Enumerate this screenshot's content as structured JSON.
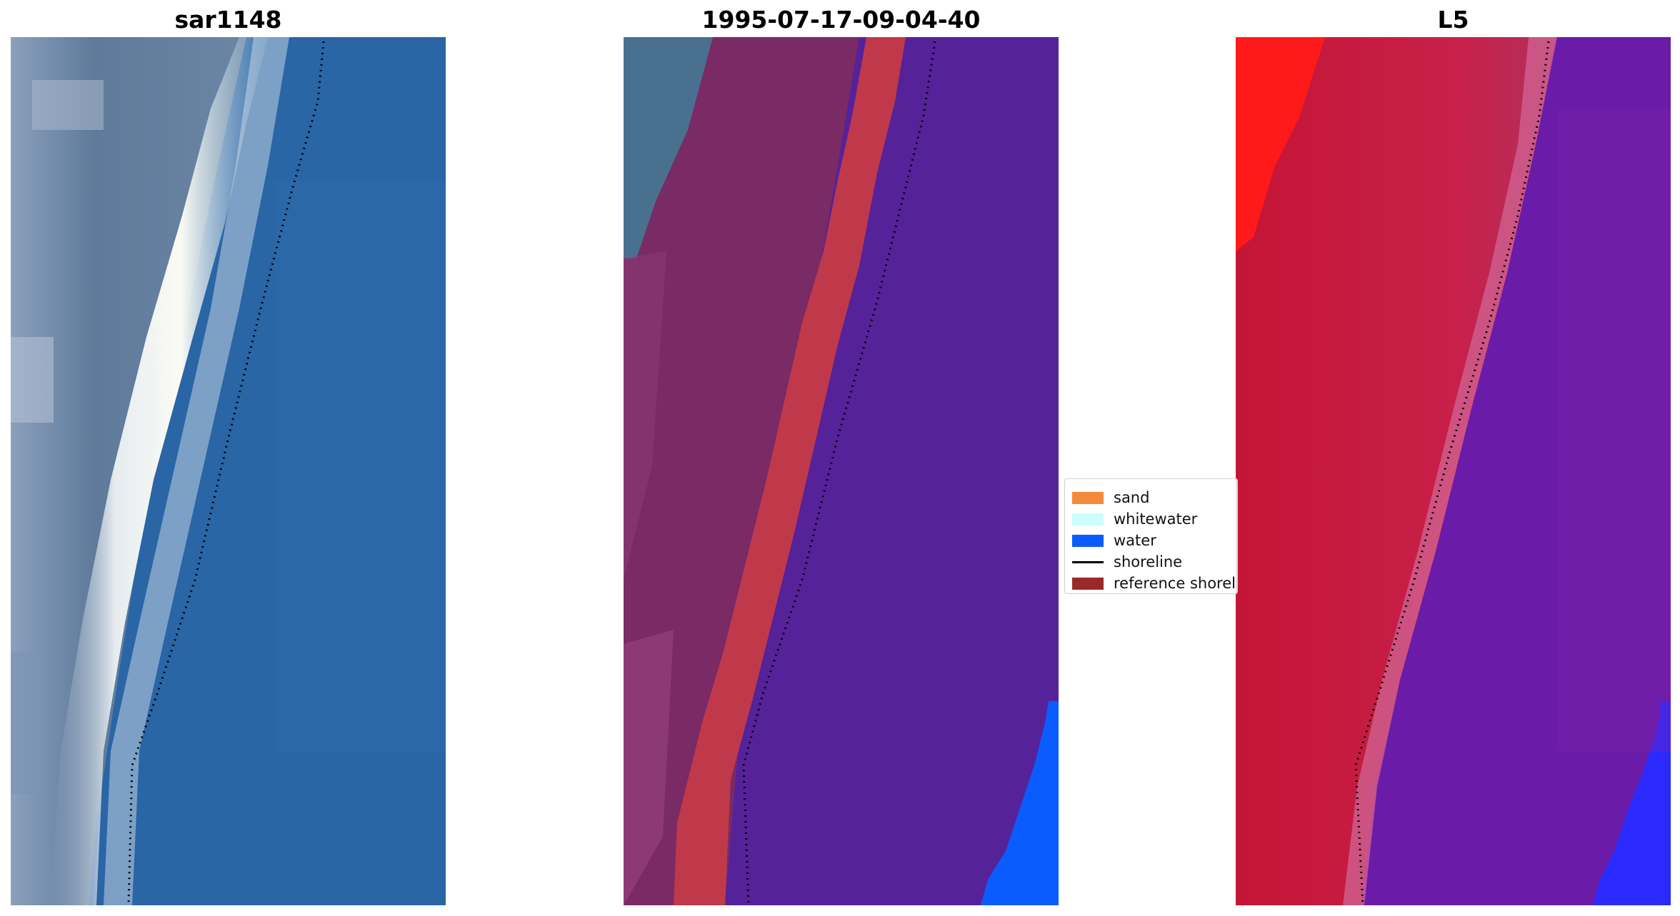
{
  "panels": [
    {
      "title": "sar1148",
      "kind": "rgb"
    },
    {
      "title": "1995-07-17-09-04-40",
      "kind": "classified"
    },
    {
      "title": "L5",
      "kind": "index"
    }
  ],
  "legend": {
    "items": [
      {
        "label": "sand",
        "color": "#f58a3d",
        "type": "patch"
      },
      {
        "label": "whitewater",
        "color": "#ccfffc",
        "type": "patch"
      },
      {
        "label": "water",
        "color": "#0a5cff",
        "type": "patch"
      },
      {
        "label": "shoreline",
        "color": "#000000",
        "type": "line"
      },
      {
        "label": "reference shoreline",
        "color": "#9a2a2a",
        "type": "patch"
      }
    ]
  },
  "colors": {
    "ocean": "#2a68a8",
    "surf": "#f2f2ee",
    "land_gray": "#6c7f98",
    "class_land": "#7a2a64",
    "class_sand": "#c0394a",
    "class_water": "#55229a",
    "class_water_bright": "#0a5cff",
    "index_high": "#c41535",
    "index_low": "#6a1ca8",
    "index_red": "#ff1a1a",
    "index_blue": "#2a2aff"
  }
}
